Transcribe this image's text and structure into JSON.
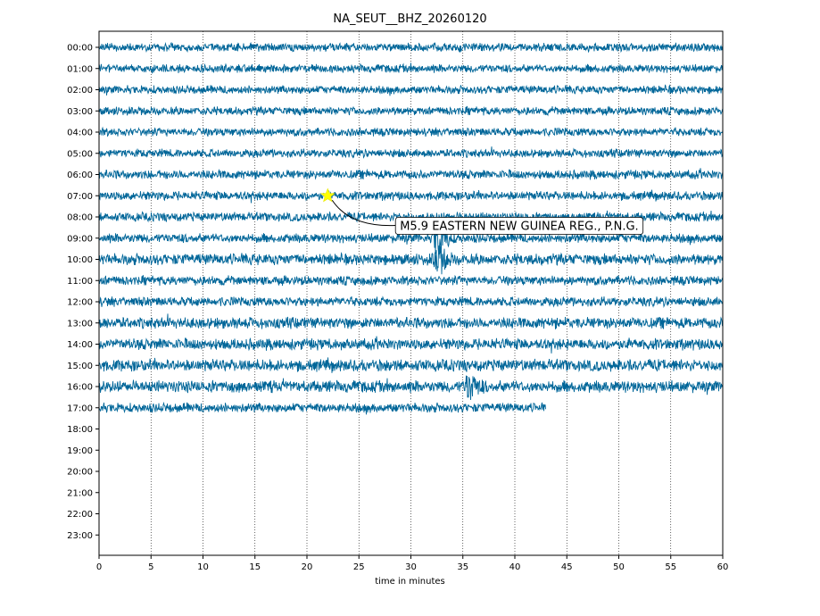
{
  "chart_data": {
    "type": "line",
    "title": "NA_SEUT__BHZ_20260120",
    "xlabel": "time in minutes",
    "ylabel": "",
    "xlim": [
      0,
      60
    ],
    "x_ticks": [
      0,
      5,
      10,
      15,
      20,
      25,
      30,
      35,
      40,
      45,
      50,
      55,
      60
    ],
    "y_tick_labels": [
      "00:00",
      "01:00",
      "02:00",
      "03:00",
      "04:00",
      "05:00",
      "06:00",
      "07:00",
      "08:00",
      "09:00",
      "10:00",
      "11:00",
      "12:00",
      "13:00",
      "14:00",
      "15:00",
      "16:00",
      "17:00",
      "18:00",
      "19:00",
      "20:00",
      "21:00",
      "22:00",
      "23:00"
    ],
    "grid": "vertical dotted",
    "trace_color": "#006699",
    "traces": [
      {
        "hour": "00:00",
        "end_minute": 60,
        "amplitude": 0.22
      },
      {
        "hour": "01:00",
        "end_minute": 60,
        "amplitude": 0.22
      },
      {
        "hour": "02:00",
        "end_minute": 60,
        "amplitude": 0.22
      },
      {
        "hour": "03:00",
        "end_minute": 60,
        "amplitude": 0.22
      },
      {
        "hour": "04:00",
        "end_minute": 60,
        "amplitude": 0.22
      },
      {
        "hour": "05:00",
        "end_minute": 60,
        "amplitude": 0.22
      },
      {
        "hour": "06:00",
        "end_minute": 60,
        "amplitude": 0.24
      },
      {
        "hour": "07:00",
        "end_minute": 60,
        "amplitude": 0.24
      },
      {
        "hour": "08:00",
        "end_minute": 60,
        "amplitude": 0.24
      },
      {
        "hour": "09:00",
        "end_minute": 60,
        "amplitude": 0.25,
        "event_minute": 32.5,
        "event_amplitude": 0.75
      },
      {
        "hour": "10:00",
        "end_minute": 60,
        "amplitude": 0.3,
        "event_minute": 32.5,
        "event_amplitude": 0.55
      },
      {
        "hour": "11:00",
        "end_minute": 60,
        "amplitude": 0.25
      },
      {
        "hour": "12:00",
        "end_minute": 60,
        "amplitude": 0.25
      },
      {
        "hour": "13:00",
        "end_minute": 60,
        "amplitude": 0.3
      },
      {
        "hour": "14:00",
        "end_minute": 60,
        "amplitude": 0.3
      },
      {
        "hour": "15:00",
        "end_minute": 60,
        "amplitude": 0.32
      },
      {
        "hour": "16:00",
        "end_minute": 60,
        "amplitude": 0.32,
        "event_minute": 35.5,
        "event_amplitude": 0.5
      },
      {
        "hour": "17:00",
        "end_minute": 43,
        "amplitude": 0.25
      }
    ],
    "event_marker": {
      "minute": 22,
      "hour": "07:00",
      "color": "#ffff00",
      "shape": "star"
    },
    "annotation": {
      "text": "M5.9 EASTERN NEW GUINEA REG., P.N.G.",
      "minute": 28,
      "hour_index": 8.4
    }
  }
}
